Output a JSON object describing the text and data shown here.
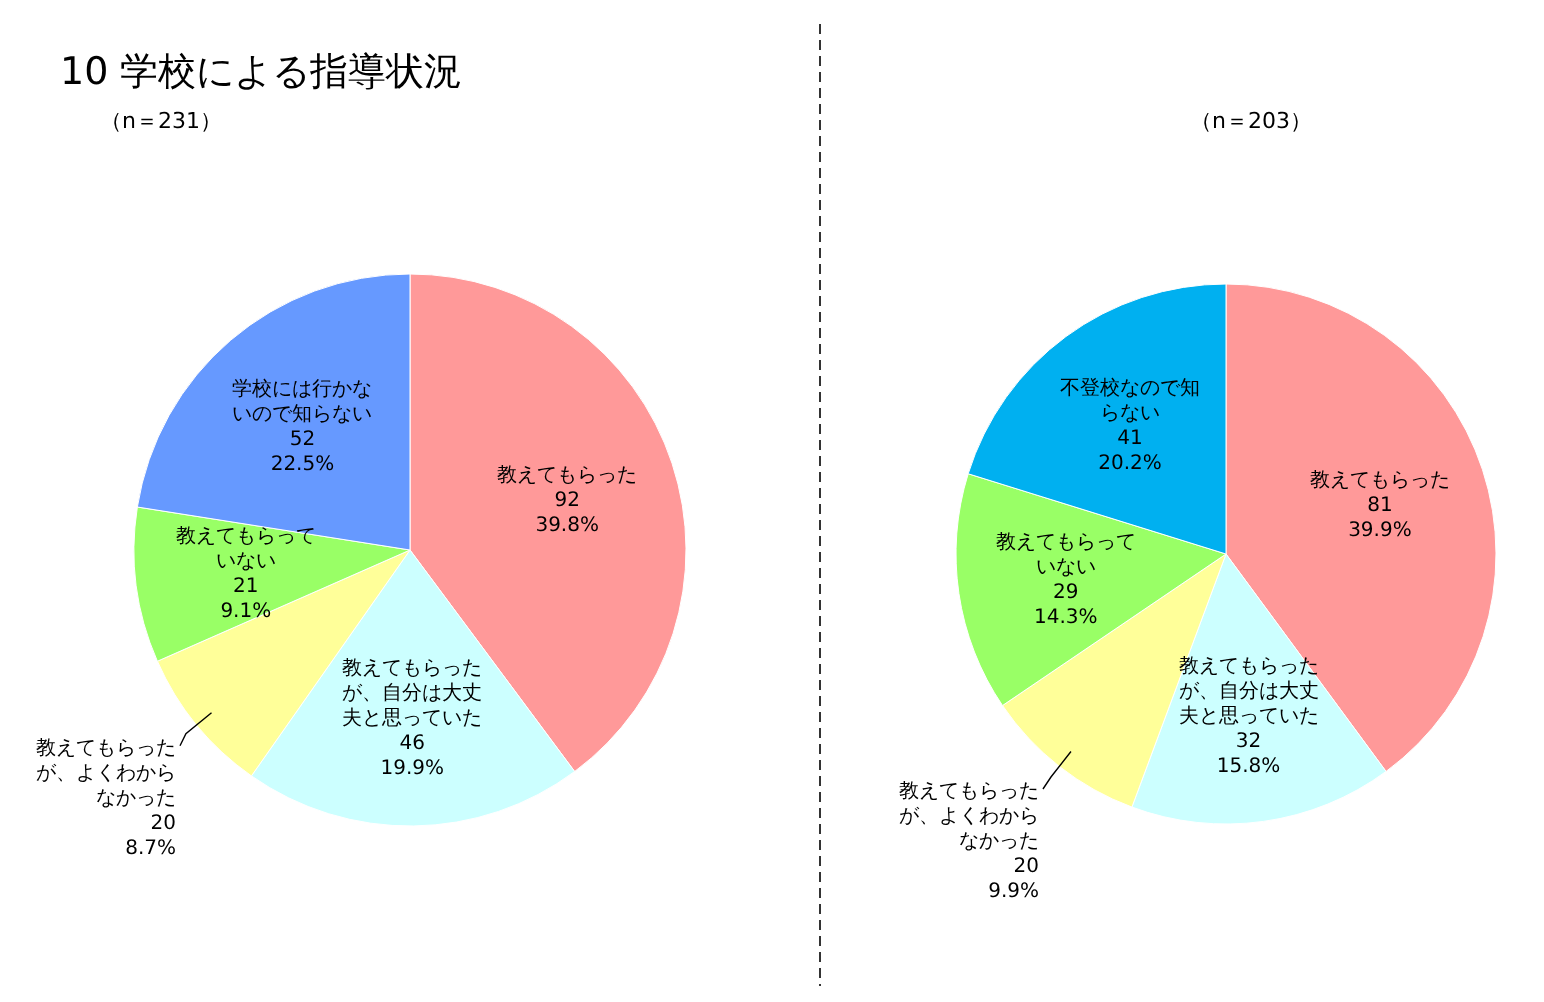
{
  "chart_data": [
    {
      "type": "pie",
      "title": "10 学校による指導状況",
      "subtitle": "（n＝231）",
      "categories": [
        "教えてもらった",
        "教えてもらったが、自分は大丈夫と思っていた",
        "教えてもらったが、よくわからなかった",
        "教えてもらっていない",
        "学校には行かないので知らない"
      ],
      "values": [
        92,
        46,
        20,
        21,
        52
      ],
      "colors": [
        "#ff9999",
        "#ccffff",
        "#ffff99",
        "#99ff66",
        "#6699ff"
      ],
      "value_labels": [
        "92\n39.8%",
        "46\n19.9%",
        "20\n8.7%",
        "21\n9.1%",
        "52\n22.5%"
      ]
    },
    {
      "type": "pie",
      "subtitle": "（n＝203）",
      "categories": [
        "教えてもらった",
        "教えてもらったが、自分は大丈夫と思っていた",
        "教えてもらったが、よくわからなかった",
        "教えてもらっていない",
        "不登校なので知らない"
      ],
      "values": [
        81,
        32,
        20,
        29,
        41
      ],
      "colors": [
        "#ff9999",
        "#ccffff",
        "#ffff99",
        "#99ff66",
        "#00b0f0"
      ],
      "value_labels": [
        "81\n39.9%",
        "32\n15.8%",
        "20\n9.9%",
        "29\n14.3%",
        "41\n20.2%"
      ]
    }
  ]
}
